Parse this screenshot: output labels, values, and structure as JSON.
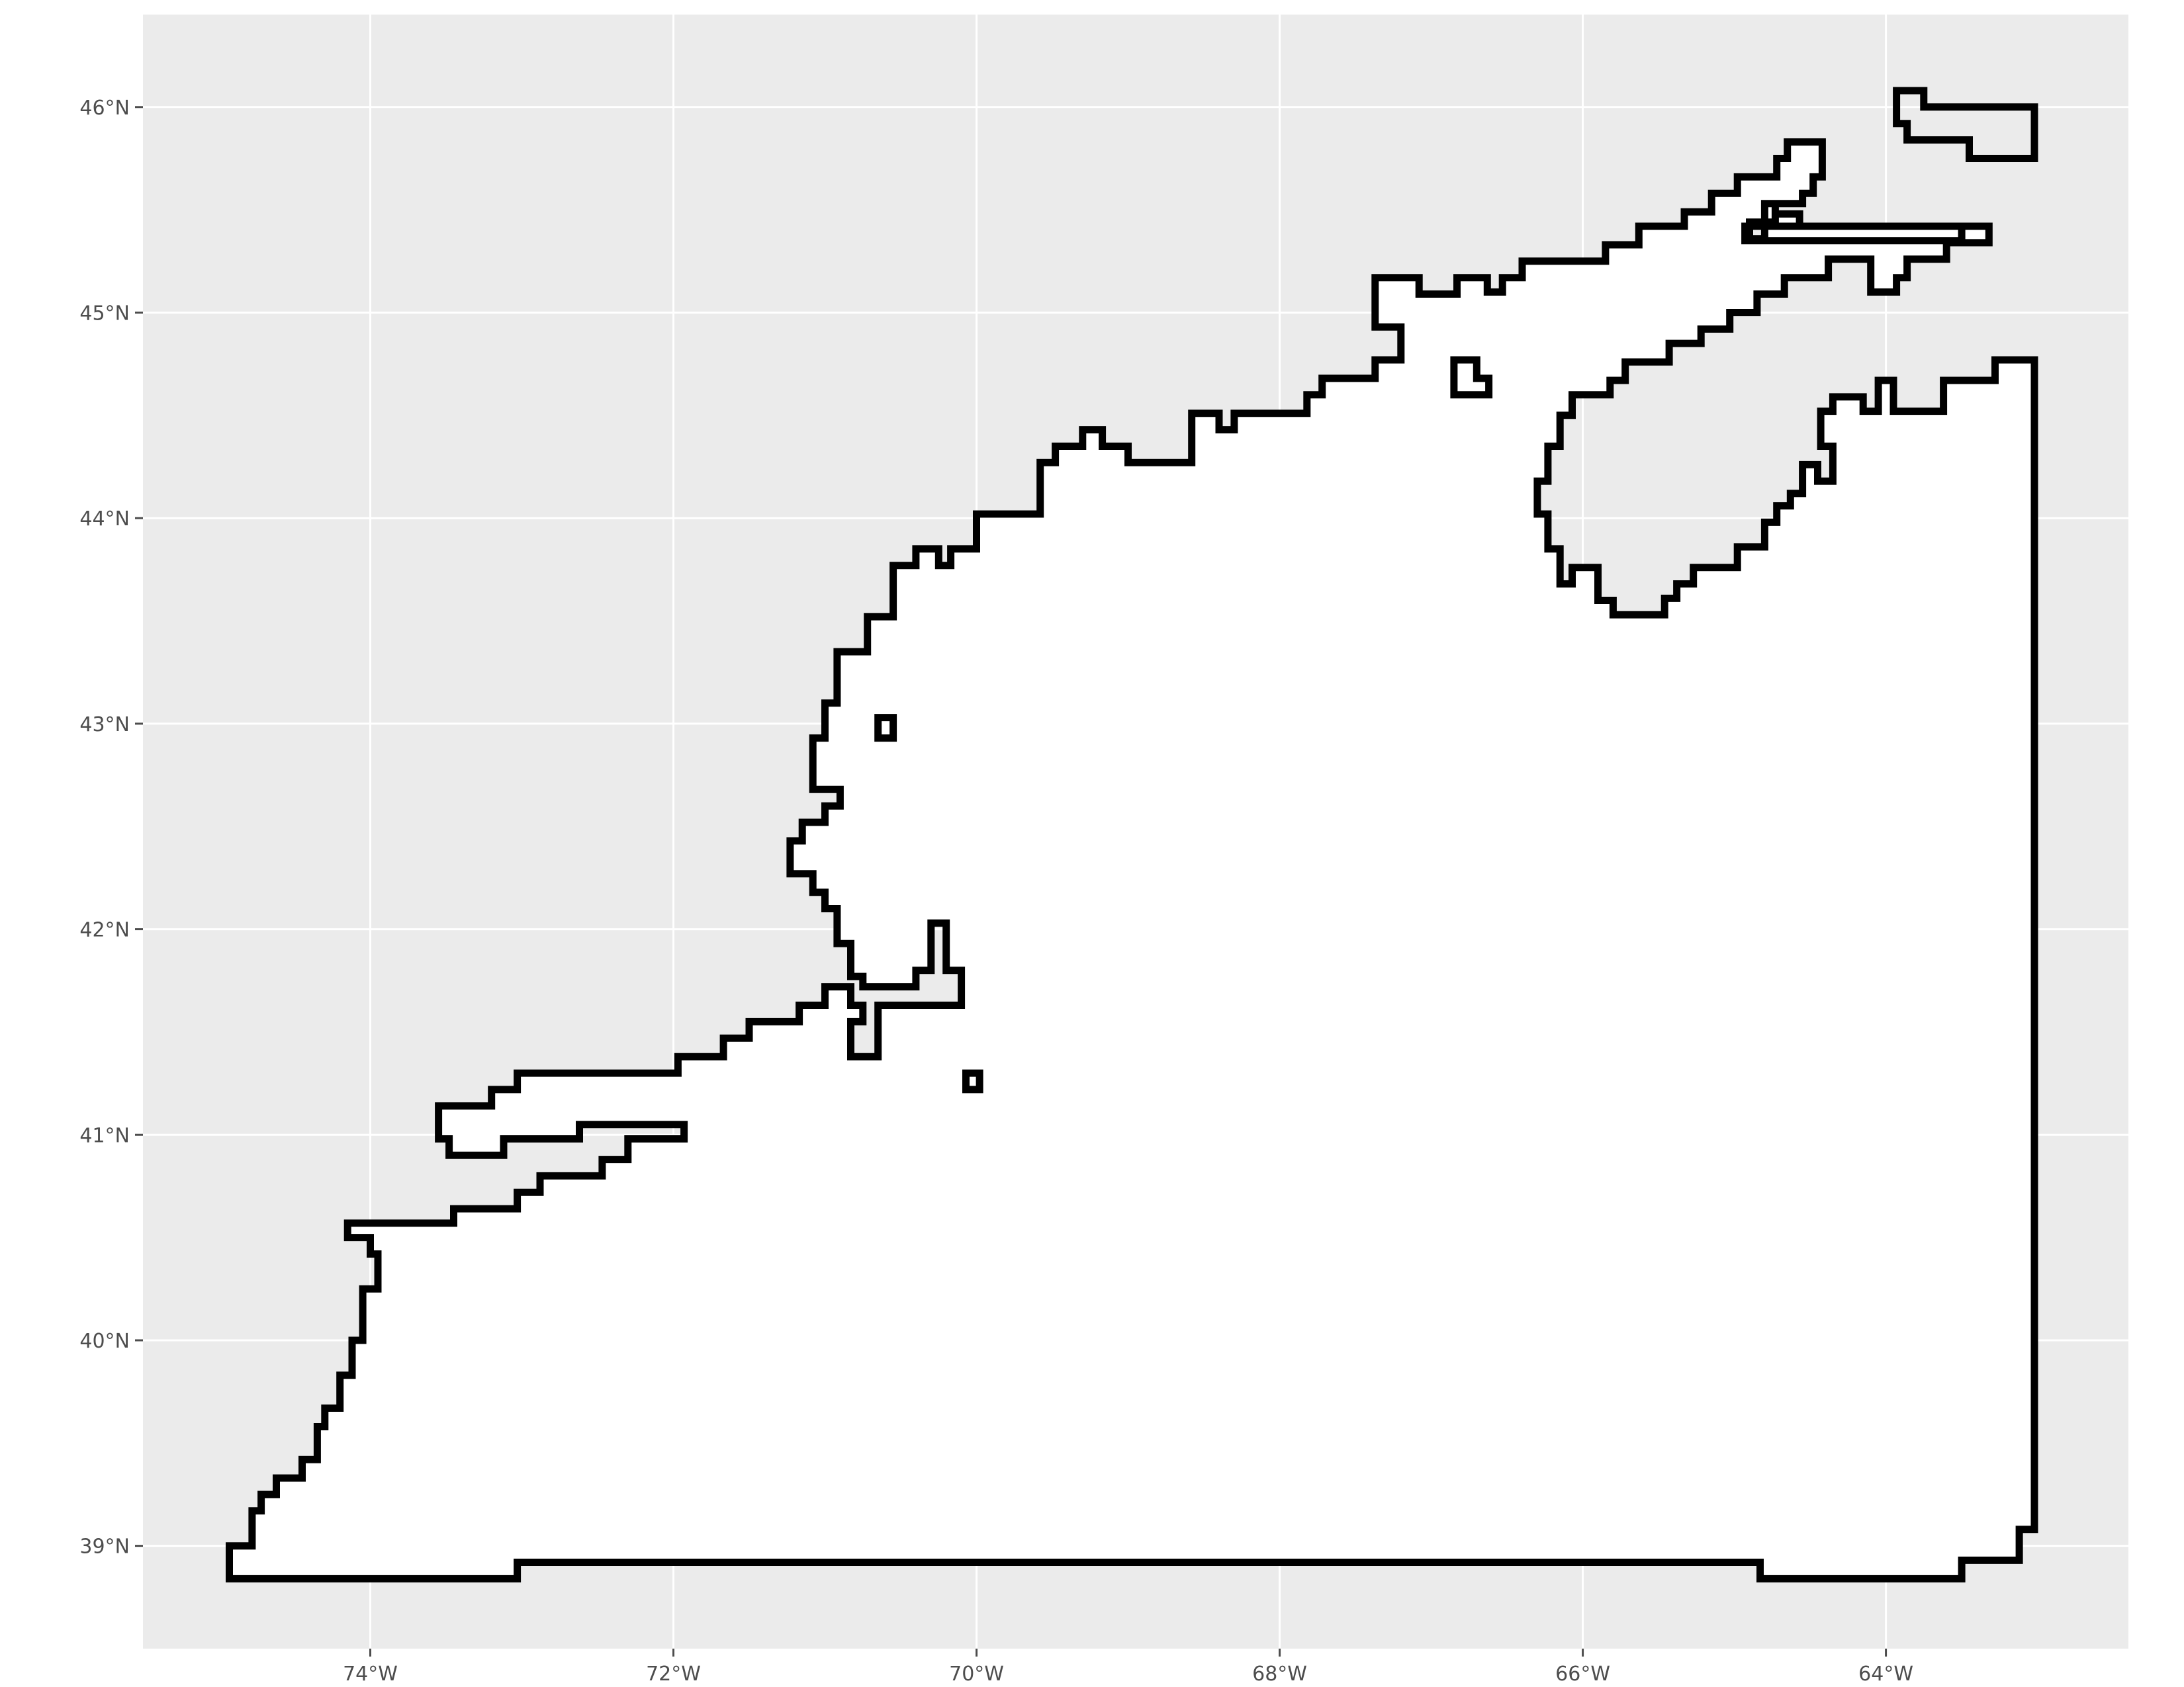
{
  "colors": {
    "panel_background": "#EBEBEB",
    "grid_line": "#FFFFFF",
    "region_fill": "#FFFFFF",
    "outline": "#000000",
    "tick_label": "#4D4D4D"
  },
  "x_ticks": [
    {
      "value": -74,
      "label": "74°W"
    },
    {
      "value": -72,
      "label": "72°W"
    },
    {
      "value": -70,
      "label": "70°W"
    },
    {
      "value": -68,
      "label": "68°W"
    },
    {
      "value": -66,
      "label": "66°W"
    },
    {
      "value": -64,
      "label": "64°W"
    }
  ],
  "y_ticks": [
    {
      "value": 39,
      "label": "39°N"
    },
    {
      "value": 40,
      "label": "40°N"
    },
    {
      "value": 41,
      "label": "41°N"
    },
    {
      "value": 42,
      "label": "42°N"
    },
    {
      "value": 43,
      "label": "43°N"
    },
    {
      "value": 44,
      "label": "44°N"
    },
    {
      "value": 45,
      "label": "45°N"
    },
    {
      "value": 46,
      "label": "46°N"
    }
  ],
  "map_extent": {
    "lon": [
      -75.5,
      -62.4
    ],
    "lat": [
      38.5,
      46.45
    ]
  },
  "outline_polygons": [
    {
      "name": "main-region",
      "filled": true,
      "coords": [
        [
          -74.93,
          38.84
        ],
        [
          -73.03,
          38.84
        ],
        [
          -73.03,
          38.92
        ],
        [
          -64.83,
          38.92
        ],
        [
          -64.83,
          38.84
        ],
        [
          -63.5,
          38.84
        ],
        [
          -63.5,
          38.93
        ],
        [
          -63.12,
          38.93
        ],
        [
          -63.12,
          39.08
        ],
        [
          -63.02,
          39.08
        ],
        [
          -63.02,
          39.42
        ],
        [
          -63.02,
          44.77
        ],
        [
          -63.28,
          44.77
        ],
        [
          -63.28,
          44.67
        ],
        [
          -63.62,
          44.67
        ],
        [
          -63.62,
          44.52
        ],
        [
          -63.95,
          44.52
        ],
        [
          -63.95,
          44.67
        ],
        [
          -64.05,
          44.67
        ],
        [
          -64.05,
          44.52
        ],
        [
          -64.15,
          44.52
        ],
        [
          -64.15,
          44.59
        ],
        [
          -64.35,
          44.59
        ],
        [
          -64.35,
          44.52
        ],
        [
          -64.43,
          44.52
        ],
        [
          -64.43,
          44.35
        ],
        [
          -64.35,
          44.35
        ],
        [
          -64.35,
          44.18
        ],
        [
          -64.45,
          44.18
        ],
        [
          -64.45,
          44.26
        ],
        [
          -64.55,
          44.26
        ],
        [
          -64.55,
          44.12
        ],
        [
          -64.63,
          44.12
        ],
        [
          -64.63,
          44.06
        ],
        [
          -64.72,
          44.06
        ],
        [
          -64.72,
          43.98
        ],
        [
          -64.8,
          43.98
        ],
        [
          -64.8,
          43.86
        ],
        [
          -64.98,
          43.86
        ],
        [
          -64.98,
          43.76
        ],
        [
          -65.27,
          43.76
        ],
        [
          -65.27,
          43.68
        ],
        [
          -65.38,
          43.68
        ],
        [
          -65.38,
          43.61
        ],
        [
          -65.46,
          43.61
        ],
        [
          -65.46,
          43.53
        ],
        [
          -65.8,
          43.53
        ],
        [
          -65.8,
          43.6
        ],
        [
          -65.9,
          43.6
        ],
        [
          -65.9,
          43.76
        ],
        [
          -66.07,
          43.76
        ],
        [
          -66.07,
          43.68
        ],
        [
          -66.15,
          43.68
        ],
        [
          -66.15,
          43.85
        ],
        [
          -66.23,
          43.85
        ],
        [
          -66.23,
          44.02
        ],
        [
          -66.3,
          44.02
        ],
        [
          -66.3,
          44.18
        ],
        [
          -66.23,
          44.18
        ],
        [
          -66.23,
          44.35
        ],
        [
          -66.15,
          44.35
        ],
        [
          -66.15,
          44.5
        ],
        [
          -66.07,
          44.5
        ],
        [
          -66.07,
          44.6
        ],
        [
          -65.82,
          44.6
        ],
        [
          -65.82,
          44.67
        ],
        [
          -65.72,
          44.67
        ],
        [
          -65.72,
          44.76
        ],
        [
          -65.43,
          44.76
        ],
        [
          -65.43,
          44.85
        ],
        [
          -65.22,
          44.85
        ],
        [
          -65.22,
          44.92
        ],
        [
          -65.03,
          44.92
        ],
        [
          -65.03,
          45.0
        ],
        [
          -64.85,
          45.0
        ],
        [
          -64.85,
          45.09
        ],
        [
          -64.67,
          45.09
        ],
        [
          -64.67,
          45.17
        ],
        [
          -64.38,
          45.17
        ],
        [
          -64.38,
          45.26
        ],
        [
          -64.1,
          45.26
        ],
        [
          -64.1,
          45.1
        ],
        [
          -63.93,
          45.1
        ],
        [
          -63.93,
          45.17
        ],
        [
          -63.86,
          45.17
        ],
        [
          -63.86,
          45.26
        ],
        [
          -63.6,
          45.26
        ],
        [
          -63.6,
          45.34
        ],
        [
          -63.32,
          45.34
        ],
        [
          -63.32,
          45.42
        ],
        [
          -64.57,
          45.42
        ],
        [
          -64.57,
          45.48
        ],
        [
          -64.73,
          45.48
        ],
        [
          -64.73,
          45.53
        ],
        [
          -64.8,
          45.53
        ],
        [
          -64.8,
          45.36
        ],
        [
          -64.9,
          45.36
        ],
        [
          -64.9,
          45.44
        ],
        [
          -64.73,
          45.44
        ],
        [
          -64.73,
          45.53
        ],
        [
          -64.55,
          45.53
        ],
        [
          -64.55,
          45.58
        ],
        [
          -64.48,
          45.58
        ],
        [
          -64.48,
          45.66
        ],
        [
          -64.42,
          45.66
        ],
        [
          -64.42,
          45.83
        ],
        [
          -64.65,
          45.83
        ],
        [
          -64.65,
          45.75
        ],
        [
          -64.72,
          45.75
        ],
        [
          -64.72,
          45.66
        ],
        [
          -64.98,
          45.66
        ],
        [
          -64.98,
          45.58
        ],
        [
          -65.15,
          45.58
        ],
        [
          -65.15,
          45.49
        ],
        [
          -65.33,
          45.49
        ],
        [
          -65.33,
          45.42
        ],
        [
          -65.63,
          45.42
        ],
        [
          -65.63,
          45.33
        ],
        [
          -65.85,
          45.33
        ],
        [
          -65.85,
          45.25
        ],
        [
          -66.4,
          45.25
        ],
        [
          -66.4,
          45.17
        ],
        [
          -66.53,
          45.17
        ],
        [
          -66.53,
          45.1
        ],
        [
          -66.63,
          45.1
        ],
        [
          -66.63,
          45.17
        ],
        [
          -66.83,
          45.17
        ],
        [
          -66.83,
          45.09
        ],
        [
          -67.08,
          45.09
        ],
        [
          -67.08,
          45.17
        ],
        [
          -67.37,
          45.17
        ],
        [
          -67.37,
          44.93
        ],
        [
          -67.2,
          44.93
        ],
        [
          -67.2,
          44.77
        ],
        [
          -67.37,
          44.77
        ],
        [
          -67.37,
          44.68
        ],
        [
          -67.72,
          44.68
        ],
        [
          -67.72,
          44.6
        ],
        [
          -67.82,
          44.6
        ],
        [
          -67.82,
          44.51
        ],
        [
          -68.3,
          44.51
        ],
        [
          -68.3,
          44.43
        ],
        [
          -68.4,
          44.43
        ],
        [
          -68.4,
          44.51
        ],
        [
          -68.58,
          44.51
        ],
        [
          -68.58,
          44.27
        ],
        [
          -69.0,
          44.27
        ],
        [
          -69.0,
          44.35
        ],
        [
          -69.17,
          44.35
        ],
        [
          -69.17,
          44.43
        ],
        [
          -69.3,
          44.43
        ],
        [
          -69.3,
          44.35
        ],
        [
          -69.48,
          44.35
        ],
        [
          -69.48,
          44.27
        ],
        [
          -69.58,
          44.27
        ],
        [
          -69.58,
          44.02
        ],
        [
          -70.0,
          44.02
        ],
        [
          -70.0,
          43.85
        ],
        [
          -70.17,
          43.85
        ],
        [
          -70.17,
          43.77
        ],
        [
          -70.25,
          43.77
        ],
        [
          -70.25,
          43.85
        ],
        [
          -70.4,
          43.85
        ],
        [
          -70.4,
          43.77
        ],
        [
          -70.55,
          43.77
        ],
        [
          -70.55,
          43.52
        ],
        [
          -70.72,
          43.52
        ],
        [
          -70.72,
          43.35
        ],
        [
          -70.92,
          43.35
        ],
        [
          -70.92,
          43.1
        ],
        [
          -71.0,
          43.1
        ],
        [
          -71.0,
          42.93
        ],
        [
          -71.08,
          42.93
        ],
        [
          -71.08,
          42.68
        ],
        [
          -70.9,
          42.68
        ],
        [
          -70.9,
          42.6
        ],
        [
          -71.0,
          42.6
        ],
        [
          -71.0,
          42.52
        ],
        [
          -71.15,
          42.52
        ],
        [
          -71.15,
          42.43
        ],
        [
          -71.23,
          42.43
        ],
        [
          -71.23,
          42.27
        ],
        [
          -71.08,
          42.27
        ],
        [
          -71.08,
          42.18
        ],
        [
          -71.0,
          42.18
        ],
        [
          -71.0,
          42.1
        ],
        [
          -70.92,
          42.1
        ],
        [
          -70.92,
          41.93
        ],
        [
          -70.83,
          41.93
        ],
        [
          -70.83,
          41.77
        ],
        [
          -70.75,
          41.77
        ],
        [
          -70.75,
          41.72
        ],
        [
          -70.4,
          41.72
        ],
        [
          -70.4,
          41.8
        ],
        [
          -70.3,
          41.8
        ],
        [
          -70.3,
          42.03
        ],
        [
          -70.2,
          42.03
        ],
        [
          -70.2,
          41.8
        ],
        [
          -70.1,
          41.8
        ],
        [
          -70.1,
          41.63
        ],
        [
          -70.65,
          41.63
        ],
        [
          -70.65,
          41.38
        ],
        [
          -70.83,
          41.38
        ],
        [
          -70.83,
          41.55
        ],
        [
          -70.75,
          41.55
        ],
        [
          -70.75,
          41.63
        ],
        [
          -70.83,
          41.63
        ],
        [
          -70.83,
          41.72
        ],
        [
          -71.0,
          41.72
        ],
        [
          -71.0,
          41.63
        ],
        [
          -71.17,
          41.63
        ],
        [
          -71.17,
          41.55
        ],
        [
          -71.5,
          41.55
        ],
        [
          -71.5,
          41.47
        ],
        [
          -71.67,
          41.47
        ],
        [
          -71.67,
          41.38
        ],
        [
          -71.97,
          41.38
        ],
        [
          -71.97,
          41.3
        ],
        [
          -73.03,
          41.3
        ],
        [
          -73.03,
          41.22
        ],
        [
          -73.2,
          41.22
        ],
        [
          -73.2,
          41.14
        ],
        [
          -73.55,
          41.14
        ],
        [
          -73.55,
          40.98
        ],
        [
          -73.48,
          40.98
        ],
        [
          -73.48,
          40.9
        ],
        [
          -73.12,
          40.9
        ],
        [
          -73.12,
          40.98
        ],
        [
          -72.62,
          40.98
        ],
        [
          -72.62,
          41.05
        ],
        [
          -71.93,
          41.05
        ],
        [
          -71.93,
          40.98
        ],
        [
          -72.3,
          40.98
        ],
        [
          -72.3,
          40.88
        ],
        [
          -72.47,
          40.88
        ],
        [
          -72.47,
          40.8
        ],
        [
          -72.88,
          40.8
        ],
        [
          -72.88,
          40.72
        ],
        [
          -73.03,
          40.72
        ],
        [
          -73.03,
          40.64
        ],
        [
          -73.45,
          40.64
        ],
        [
          -73.45,
          40.57
        ],
        [
          -74.15,
          40.57
        ],
        [
          -74.15,
          40.5
        ],
        [
          -74.0,
          40.5
        ],
        [
          -74.0,
          40.42
        ],
        [
          -73.95,
          40.42
        ],
        [
          -73.95,
          40.25
        ],
        [
          -74.05,
          40.25
        ],
        [
          -74.05,
          40.0
        ],
        [
          -74.12,
          40.0
        ],
        [
          -74.12,
          39.83
        ],
        [
          -74.2,
          39.83
        ],
        [
          -74.2,
          39.67
        ],
        [
          -74.3,
          39.67
        ],
        [
          -74.3,
          39.58
        ],
        [
          -74.35,
          39.58
        ],
        [
          -74.35,
          39.42
        ],
        [
          -74.45,
          39.42
        ],
        [
          -74.45,
          39.33
        ],
        [
          -74.62,
          39.33
        ],
        [
          -74.62,
          39.25
        ],
        [
          -74.72,
          39.25
        ],
        [
          -74.72,
          39.17
        ],
        [
          -74.78,
          39.17
        ],
        [
          -74.78,
          39.0
        ],
        [
          -74.93,
          39.0
        ]
      ]
    },
    {
      "name": "north-shore",
      "filled": false,
      "coords": [
        [
          -64.93,
          45.35
        ],
        [
          -63.5,
          45.35
        ],
        [
          -63.5,
          45.42
        ],
        [
          -64.93,
          45.42
        ],
        [
          -64.93,
          45.35
        ]
      ]
    },
    {
      "name": "islet-a",
      "filled": false,
      "coords": [
        [
          -70.65,
          42.93
        ],
        [
          -70.55,
          42.93
        ],
        [
          -70.55,
          43.03
        ],
        [
          -70.65,
          43.03
        ],
        [
          -70.65,
          42.93
        ]
      ]
    },
    {
      "name": "islet-b",
      "filled": false,
      "coords": [
        [
          -70.07,
          41.22
        ],
        [
          -69.98,
          41.22
        ],
        [
          -69.98,
          41.3
        ],
        [
          -70.07,
          41.3
        ],
        [
          -70.07,
          41.22
        ]
      ]
    },
    {
      "name": "islet-c",
      "filled": false,
      "coords": [
        [
          -66.85,
          44.6
        ],
        [
          -66.62,
          44.6
        ],
        [
          -66.62,
          44.68
        ],
        [
          -66.7,
          44.68
        ],
        [
          -66.7,
          44.77
        ],
        [
          -66.85,
          44.77
        ],
        [
          -66.85,
          44.6
        ]
      ]
    },
    {
      "name": "northeast-inlet",
      "filled": false,
      "coords": [
        [
          -63.93,
          46.08
        ],
        [
          -63.75,
          46.08
        ],
        [
          -63.75,
          46.0
        ],
        [
          -63.02,
          46.0
        ],
        [
          -63.02,
          45.75
        ],
        [
          -63.45,
          45.75
        ],
        [
          -63.45,
          45.84
        ],
        [
          -63.86,
          45.84
        ],
        [
          -63.86,
          45.92
        ],
        [
          -63.93,
          45.92
        ],
        [
          -63.93,
          46.08
        ]
      ]
    }
  ]
}
